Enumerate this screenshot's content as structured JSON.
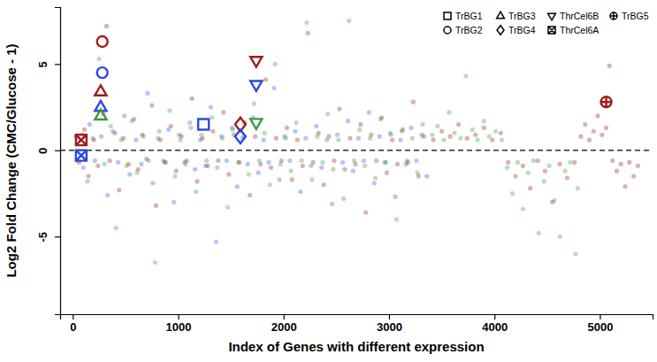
{
  "chart_data": {
    "type": "scatter",
    "x_label": "Index of Genes with different expression",
    "y_label": "Log2 Fold Change (CMC/Glucose - 1)",
    "xlim": [
      -120,
      5500
    ],
    "ylim": [
      -9.5,
      8.3
    ],
    "xticks": [
      0,
      1000,
      2000,
      3000,
      4000,
      5000
    ],
    "yticks": [
      -5,
      0,
      5
    ],
    "hline": 0,
    "legend": "top-right",
    "series": [
      {
        "color": "#3d55e6",
        "marker": "dot",
        "x": [
          50,
          100,
          160,
          210,
          270,
          330,
          380,
          430,
          490,
          540,
          600,
          650,
          710,
          760,
          810,
          860,
          910,
          960,
          1010,
          1060,
          1110,
          1160,
          1210,
          1260,
          1310,
          1360,
          1410,
          1460,
          1510,
          1560,
          1610,
          1660,
          1710,
          1760,
          1810,
          1860,
          1910,
          1960,
          2010,
          2060,
          2110,
          2160,
          2210,
          2260,
          2310,
          2360,
          2410,
          2460,
          2510,
          2560,
          2610,
          2660,
          2710,
          2760,
          2810,
          2860,
          2910,
          2960,
          3010,
          3060,
          3110,
          3160,
          3210,
          3260,
          3310,
          3360
        ],
        "values": [
          0.7,
          -1.0,
          1.5,
          -0.6,
          0.8,
          -2.6,
          1.1,
          -0.7,
          2.0,
          -1.4,
          0.6,
          -0.8,
          3.3,
          -1.9,
          0.7,
          -0.6,
          1.2,
          -3.0,
          0.9,
          -0.7,
          1.6,
          -1.1,
          0.6,
          -0.9,
          2.5,
          -5.3,
          0.8,
          -0.6,
          1.3,
          -2.1,
          0.7,
          -0.8,
          1.9,
          -1.3,
          0.6,
          -0.7,
          3.6,
          -1.7,
          0.8,
          -0.6,
          1.1,
          -2.4,
          0.7,
          -0.9,
          1.4,
          -1.0,
          0.6,
          -3.1,
          0.9,
          -0.7,
          1.7,
          -1.2,
          0.7,
          -0.6,
          2.2,
          -1.9,
          0.8,
          -0.7,
          1.0,
          -2.7,
          0.6,
          -0.8,
          1.3,
          -0.6,
          0.9,
          -1.5
        ]
      },
      {
        "color": "#3a9d3a",
        "marker": "dot",
        "x": [
          40,
          90,
          140,
          190,
          250,
          300,
          360,
          410,
          460,
          510,
          560,
          610,
          670,
          720,
          780,
          820,
          870,
          920,
          970,
          1020,
          1070,
          1120,
          1170,
          1220,
          1270,
          1320,
          1370,
          1420,
          1470,
          1520,
          1570,
          1620,
          1670,
          1720,
          1770,
          1820,
          1870,
          1920,
          1970,
          2020,
          2070,
          2120,
          2170,
          2220,
          2270,
          2320,
          2370,
          2420,
          2470,
          2520,
          2570,
          2620,
          2670,
          2720,
          2770,
          2820,
          2870,
          2920,
          2970,
          3020,
          3070,
          3120,
          3170,
          3220,
          3270,
          3320,
          3410,
          3460,
          3520,
          3570,
          3620,
          3680,
          3730,
          3790,
          3840,
          3900,
          3950,
          4010,
          4070,
          4120,
          4170,
          4220,
          4270,
          4320,
          4370,
          4420,
          4470,
          4520,
          4570,
          4620,
          4670,
          4720,
          4770,
          4790
        ],
        "values": [
          -0.6,
          0.9,
          -1.8,
          0.7,
          5.3,
          -0.8,
          1.4,
          -4.5,
          0.6,
          -0.9,
          1.7,
          -1.3,
          0.8,
          -0.6,
          -6.5,
          1.1,
          -0.7,
          2.3,
          -1.5,
          0.6,
          -0.8,
          1.3,
          -2.4,
          0.9,
          -0.6,
          1.9,
          -1.0,
          0.7,
          -3.3,
          1.2,
          -0.7,
          0.8,
          -1.4,
          2.7,
          -0.6,
          1.0,
          -2.0,
          5.0,
          -0.8,
          0.7,
          -1.2,
          1.6,
          -0.6,
          7.4,
          -1.7,
          0.8,
          -0.7,
          2.1,
          -1.1,
          0.6,
          -2.8,
          7.5,
          -0.6,
          1.2,
          -0.9,
          0.7,
          -1.6,
          1.8,
          -0.7,
          0.9,
          -4.0,
          1.1,
          -0.6,
          0.7,
          -1.3,
          1.5,
          0.9,
          1.4,
          0.6,
          2.2,
          1.0,
          0.7,
          4.3,
          1.2,
          0.6,
          1.7,
          0.8,
          1.1,
          0.6,
          -1.0,
          -2.5,
          -0.7,
          -3.4,
          -1.3,
          -0.6,
          -4.8,
          -1.8,
          -0.9,
          -2.9,
          -5.0,
          -1.2,
          -0.7,
          -6.0,
          -2.2
        ]
      },
      {
        "color": "#9b2020",
        "marker": "dot",
        "x": [
          30,
          60,
          110,
          150,
          200,
          240,
          290,
          320,
          350,
          400,
          440,
          480,
          530,
          580,
          620,
          660,
          700,
          750,
          790,
          830,
          880,
          930,
          980,
          1030,
          1080,
          1130,
          1180,
          1230,
          1280,
          1330,
          1380,
          1430,
          1480,
          1530,
          1580,
          1630,
          1680,
          1730,
          1780,
          1830,
          1880,
          1930,
          1980,
          2030,
          2080,
          2130,
          2180,
          2230,
          2280,
          2330,
          2380,
          2430,
          2480,
          2530,
          2580,
          2630,
          2680,
          2730,
          2780,
          2830,
          2880,
          2930,
          2980,
          3030,
          3080,
          3130,
          3180,
          3230,
          3280,
          3330,
          3420,
          3500,
          3580,
          3660,
          3740,
          3820,
          3900,
          3980,
          4060,
          4130,
          4200,
          4270,
          4340,
          4410,
          4480,
          4550,
          4620,
          4690,
          4760,
          4820,
          4860,
          4900,
          4940,
          4980,
          5020,
          5060,
          5090,
          5120,
          5160,
          5200,
          5240,
          5280,
          5320,
          5360
        ],
        "values": [
          0.8,
          -0.7,
          1.2,
          -1.5,
          0.6,
          -0.9,
          2.1,
          7.2,
          -0.6,
          1.0,
          -2.3,
          0.7,
          -0.8,
          1.8,
          -1.1,
          0.9,
          -0.5,
          2.6,
          -3.2,
          0.6,
          -0.7,
          1.4,
          -1.2,
          0.8,
          -0.6,
          3.0,
          -1.8,
          0.7,
          -0.9,
          1.1,
          -0.6,
          2.2,
          -1.4,
          0.9,
          -0.7,
          1.6,
          -2.6,
          0.8,
          -0.8,
          4.1,
          -1.0,
          0.7,
          -0.6,
          1.3,
          -1.7,
          0.6,
          -0.9,
          6.8,
          -0.7,
          1.0,
          -2.0,
          0.8,
          -0.6,
          2.4,
          -1.1,
          0.7,
          -0.8,
          1.5,
          -3.6,
          0.9,
          -0.6,
          1.9,
          -1.3,
          0.6,
          -0.8,
          1.2,
          -0.7,
          2.8,
          -1.5,
          0.8,
          0.6,
          1.1,
          0.8,
          1.5,
          0.7,
          0.9,
          1.3,
          0.6,
          1.0,
          -0.7,
          -1.5,
          -0.9,
          -2.2,
          -0.6,
          -1.2,
          -3.0,
          -0.8,
          -1.6,
          -0.7,
          0.8,
          1.5,
          0.6,
          1.1,
          2.0,
          0.9,
          1.3,
          4.9,
          -0.6,
          -1.2,
          -0.8,
          -2.1,
          -0.7,
          -1.5,
          -0.9
        ]
      },
      {
        "name": "TrBG1",
        "marker": "square",
        "x": [
          1240
        ],
        "values": [
          1.5
        ],
        "colors": [
          "#2a49e6"
        ]
      },
      {
        "name": "TrBG2",
        "marker": "circle",
        "x": [
          280,
          280
        ],
        "values": [
          6.3,
          4.5
        ],
        "colors": [
          "#a01c1c",
          "#2a49e6"
        ]
      },
      {
        "name": "TrBG3",
        "marker": "triangle",
        "x": [
          265,
          265,
          265
        ],
        "values": [
          3.4,
          2.5,
          2.0
        ],
        "colors": [
          "#a01c1c",
          "#2a49e6",
          "#3c9a3c"
        ]
      },
      {
        "name": "TrBG4",
        "marker": "diamond",
        "x": [
          1590,
          1590
        ],
        "values": [
          1.5,
          0.8
        ],
        "colors": [
          "#a01c1c",
          "#2a49e6"
        ]
      },
      {
        "name": "ThrCel6B",
        "marker": "triangle-down",
        "x": [
          1740,
          1740,
          1740
        ],
        "values": [
          5.2,
          3.8,
          1.6
        ],
        "colors": [
          "#a01c1c",
          "#2a49e6",
          "#3c9a3c"
        ]
      },
      {
        "name": "ThrCel6A",
        "marker": "square-x",
        "x": [
          80,
          80
        ],
        "values": [
          0.6,
          -0.3
        ],
        "colors": [
          "#a01c1c",
          "#2a49e6"
        ]
      },
      {
        "name": "TrBG5",
        "marker": "circle-plus",
        "x": [
          5060
        ],
        "values": [
          2.8
        ],
        "colors": [
          "#a01c1c"
        ]
      }
    ]
  }
}
